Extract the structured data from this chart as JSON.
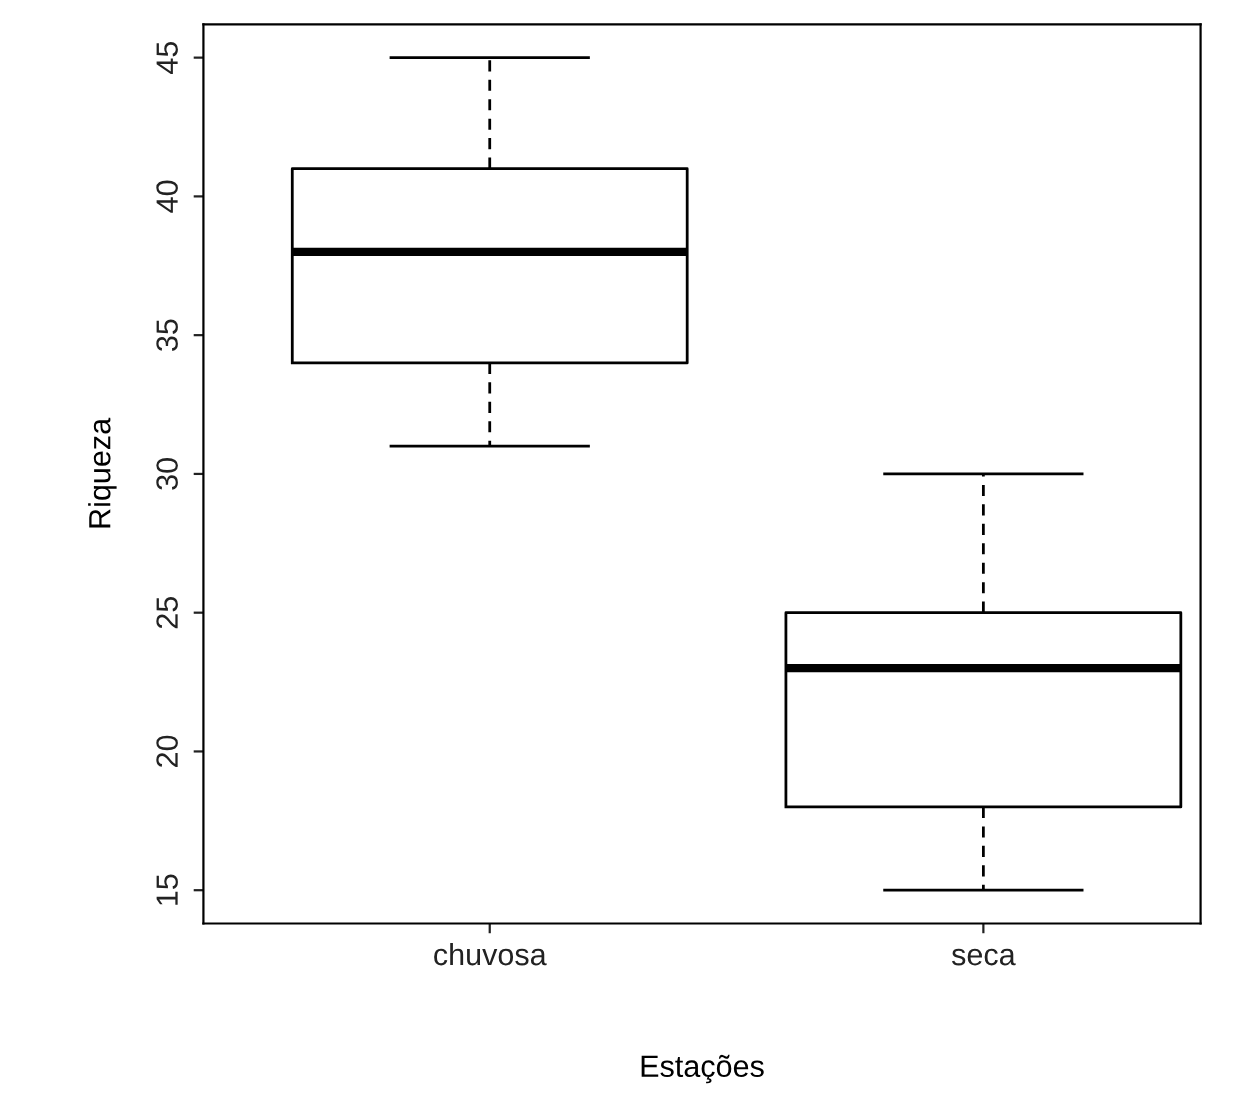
{
  "chart_data": {
    "type": "box",
    "xlabel": "Estações",
    "ylabel": "Riqueza",
    "categories": [
      "chuvosa",
      "seca"
    ],
    "boxes": [
      {
        "low": 31,
        "q1": 34,
        "median": 38,
        "q3": 41,
        "high": 45
      },
      {
        "low": 15,
        "q1": 18,
        "median": 23,
        "q3": 25,
        "high": 30
      }
    ],
    "ylim": [
      13.8,
      46.2
    ],
    "yticks": [
      15,
      20,
      25,
      30,
      35,
      40,
      45
    ],
    "grid": false
  }
}
